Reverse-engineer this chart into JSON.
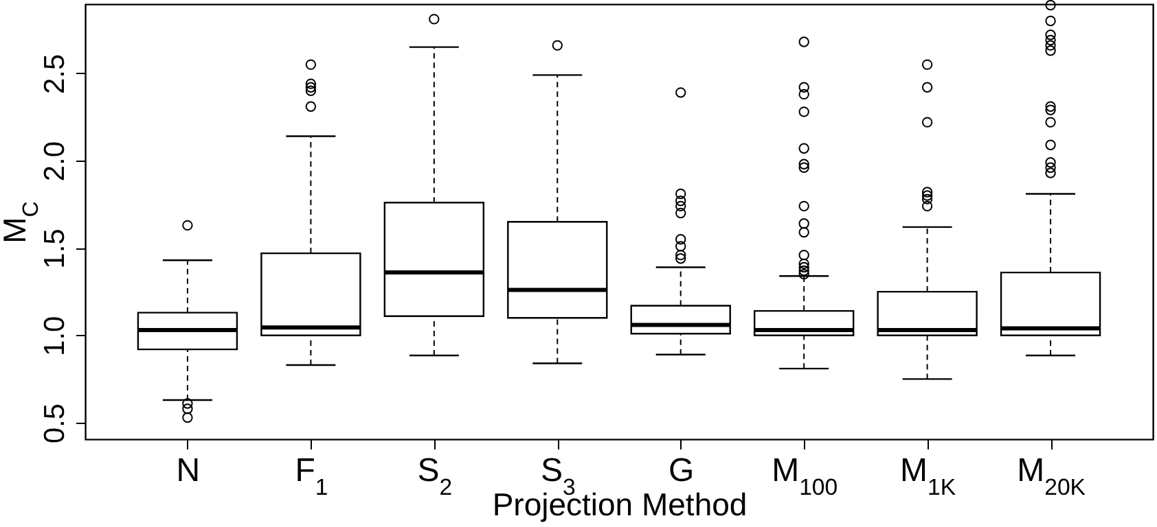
{
  "chart_data": {
    "type": "box",
    "xlabel": "Projection Method",
    "ylabel": "M$_{C}$",
    "categories": [
      "N",
      "F$_{1}$",
      "S$_{2}$",
      "S$_{3}$",
      "G",
      "M$_{100}$",
      "M$_{1K}$",
      "M$_{20K}$"
    ],
    "ylim": [
      0.406,
      2.896
    ],
    "yticks": [
      0.5,
      {
        "value": 1,
        "label": "1.0"
      },
      1.5,
      {
        "value": 2,
        "label": "2.0"
      },
      2.5
    ],
    "boxes": [
      {
        "low": 0.63,
        "q1": 0.92,
        "median": 1.03,
        "q3": 1.13,
        "high": 1.43,
        "outliers": [
          1.63,
          0.61,
          0.58,
          0.53
        ]
      },
      {
        "low": 0.83,
        "q1": 1.0,
        "median": 1.045,
        "q3": 1.47,
        "high": 2.14,
        "outliers": [
          2.55,
          2.44,
          2.42,
          2.4,
          2.31
        ]
      },
      {
        "low": 0.885,
        "q1": 1.11,
        "median": 1.36,
        "q3": 1.76,
        "high": 2.65,
        "outliers": [
          2.81
        ]
      },
      {
        "low": 0.84,
        "q1": 1.1,
        "median": 1.26,
        "q3": 1.65,
        "high": 2.49,
        "outliers": [
          2.66
        ]
      },
      {
        "low": 0.89,
        "q1": 1.01,
        "median": 1.06,
        "q3": 1.17,
        "high": 1.39,
        "outliers": [
          2.39,
          1.81,
          1.77,
          1.74,
          1.7,
          1.55,
          1.51,
          1.46,
          1.44
        ]
      },
      {
        "low": 0.81,
        "q1": 1.0,
        "median": 1.03,
        "q3": 1.14,
        "high": 1.34,
        "outliers": [
          2.68,
          2.42,
          2.38,
          2.28,
          2.07,
          1.98,
          1.96,
          1.74,
          1.64,
          1.59,
          1.46,
          1.41,
          1.39,
          1.37,
          1.35
        ]
      },
      {
        "low": 0.75,
        "q1": 1.0,
        "median": 1.03,
        "q3": 1.25,
        "high": 1.62,
        "outliers": [
          2.55,
          2.42,
          2.22,
          1.82,
          1.8,
          1.78,
          1.74
        ]
      },
      {
        "low": 0.885,
        "q1": 1.0,
        "median": 1.04,
        "q3": 1.36,
        "high": 1.81,
        "outliers": [
          2.89,
          2.8,
          2.72,
          2.69,
          2.66,
          2.63,
          2.31,
          2.29,
          2.22,
          2.09,
          1.99,
          1.96,
          1.93
        ]
      }
    ]
  }
}
